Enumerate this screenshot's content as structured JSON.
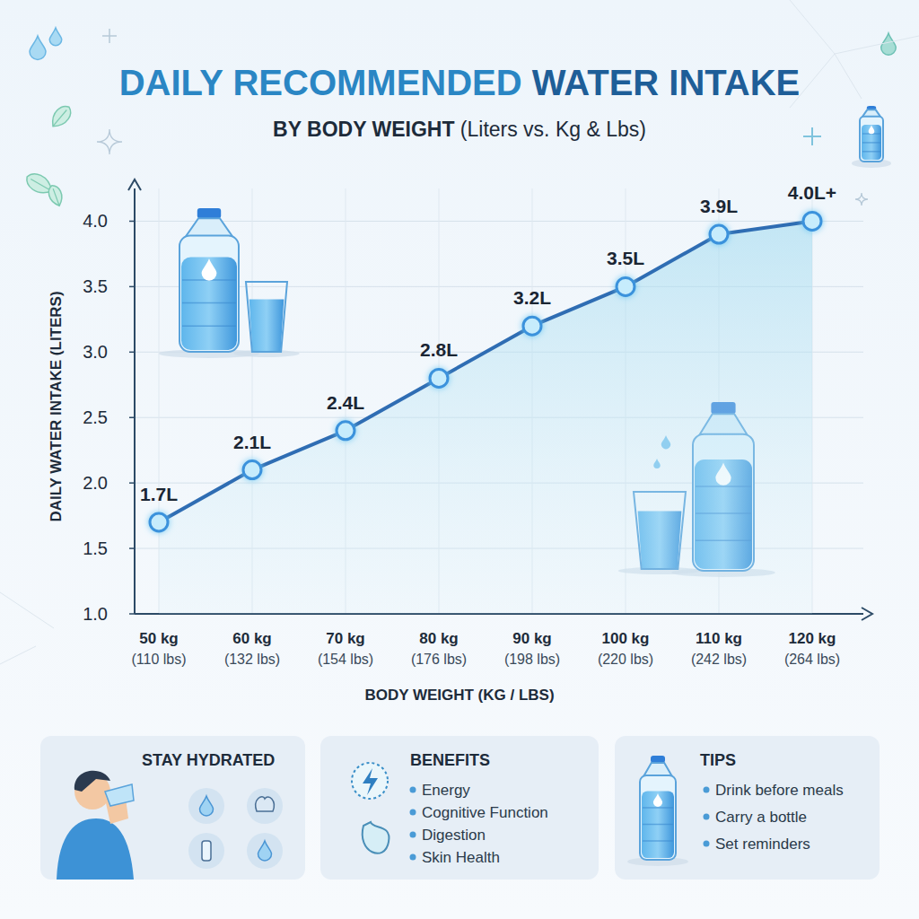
{
  "chart_data": {
    "type": "line",
    "title": "DAILY RECOMMENDED WATER INTAKE",
    "subtitle": "BY BODY WEIGHT (Liters vs. Kg & Lbs)",
    "x_label": "BODY WEIGHT (KG / LBS)",
    "y_label": "DAILY WATER INTAKE (LITERS)",
    "categories": [
      "50 kg (110 lbs)",
      "60 kg (132 lbs)",
      "70 kg (154 lbs)",
      "80 kg (176 lbs)",
      "90 kg (198 lbs)",
      "100 kg (220 lbs)",
      "110 kg (242 lbs)",
      "120 kg (264 lbs)"
    ],
    "values": [
      1.7,
      2.1,
      2.4,
      2.8,
      3.2,
      3.5,
      3.9,
      4.0
    ],
    "value_labels": [
      "1.7L",
      "2.1L",
      "2.4L",
      "2.8L",
      "3.2L",
      "3.5L",
      "3.9L",
      "4.0L+"
    ],
    "color": "#2f6db3",
    "marker": "circle",
    "ylim": [
      1.0,
      4.25
    ],
    "yticks": [
      {
        "value": 1.0,
        "label": "1.0"
      },
      1.5,
      {
        "value": 2.0,
        "label": "2.0"
      },
      2.5,
      {
        "value": 3.0,
        "label": "3.0"
      },
      3.5,
      {
        "value": 4.0,
        "label": "4.0"
      }
    ],
    "grid": true,
    "data_labels": true
  },
  "info_panels": [
    {
      "title": "STAY HYDRATED"
    },
    {
      "title": "BENEFITS",
      "items": [
        "Energy",
        "Cognitive Function",
        "Digestion",
        "Skin Health"
      ]
    },
    {
      "title": "TIPS",
      "items": [
        "Drink before meals",
        "Carry a bottle",
        "Set reminders"
      ]
    }
  ]
}
